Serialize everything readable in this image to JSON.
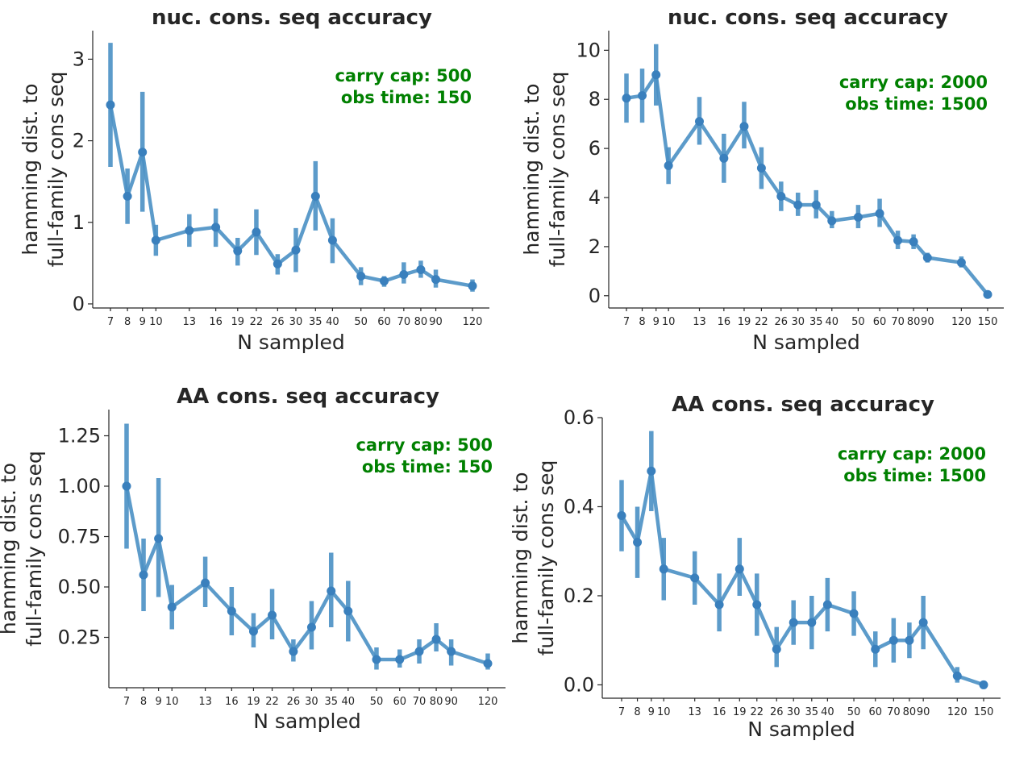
{
  "chart_data": [
    {
      "id": "p1",
      "type": "line",
      "position": "top-left",
      "title": "nuc. cons. seq accuracy",
      "xlabel": "N sampled",
      "ylabel_lines": [
        "hamming dist. to",
        "full-family cons seq"
      ],
      "annotation": [
        "carry cap: 500",
        "obs time:  150"
      ],
      "color": "#4a90c4",
      "ylim": [
        -0.05,
        3.35
      ],
      "yticks": [
        0,
        1,
        2,
        3
      ],
      "ytick_labels": [
        "0",
        "1",
        "2",
        "3"
      ],
      "categories": [
        "7",
        "8",
        "9",
        "10",
        "13",
        "16",
        "19",
        "22",
        "26",
        "30",
        "35",
        "40",
        "50",
        "60",
        "70",
        "80",
        "90",
        "120"
      ],
      "values": [
        2.44,
        1.32,
        1.86,
        0.78,
        0.9,
        0.94,
        0.65,
        0.88,
        0.49,
        0.66,
        1.32,
        0.78,
        0.34,
        0.28,
        0.36,
        0.42,
        0.3,
        0.22
      ],
      "err_low": [
        1.68,
        0.98,
        1.13,
        0.59,
        0.7,
        0.7,
        0.47,
        0.6,
        0.36,
        0.39,
        0.9,
        0.5,
        0.23,
        0.21,
        0.25,
        0.32,
        0.2,
        0.15
      ],
      "err_high": [
        3.2,
        1.66,
        2.6,
        0.97,
        1.1,
        1.17,
        0.81,
        1.16,
        0.61,
        0.93,
        1.75,
        1.05,
        0.45,
        0.34,
        0.51,
        0.53,
        0.42,
        0.3
      ]
    },
    {
      "id": "p2",
      "type": "line",
      "position": "top-right",
      "title": "nuc. cons. seq accuracy",
      "xlabel": "N sampled",
      "ylabel_lines": [
        "hamming dist. to",
        "full-family cons seq"
      ],
      "annotation": [
        "carry cap: 2000",
        "obs time:  1500"
      ],
      "color": "#4a90c4",
      "ylim": [
        -0.5,
        10.8
      ],
      "yticks": [
        0,
        2,
        4,
        6,
        8,
        10
      ],
      "ytick_labels": [
        "0",
        "2",
        "4",
        "6",
        "8",
        "10"
      ],
      "categories": [
        "7",
        "8",
        "9",
        "10",
        "13",
        "16",
        "19",
        "22",
        "26",
        "30",
        "35",
        "40",
        "50",
        "60",
        "70",
        "80",
        "90",
        "120",
        "150"
      ],
      "values": [
        8.05,
        8.15,
        9.0,
        5.3,
        7.1,
        5.6,
        6.9,
        5.2,
        4.05,
        3.7,
        3.7,
        3.05,
        3.2,
        3.35,
        2.25,
        2.2,
        1.55,
        1.35,
        0.05
      ],
      "err_low": [
        7.05,
        7.05,
        7.75,
        4.55,
        6.15,
        4.6,
        6.0,
        4.35,
        3.45,
        3.25,
        3.15,
        2.75,
        2.75,
        2.8,
        1.9,
        1.9,
        1.35,
        1.15,
        0.0
      ],
      "err_high": [
        9.05,
        9.25,
        10.25,
        6.05,
        8.1,
        6.6,
        7.9,
        6.05,
        4.65,
        4.2,
        4.3,
        3.45,
        3.7,
        3.95,
        2.65,
        2.5,
        1.75,
        1.6,
        0.1
      ]
    },
    {
      "id": "p3",
      "type": "line",
      "position": "bottom-left",
      "title": "AA cons. seq accuracy",
      "xlabel": "N sampled",
      "ylabel_lines": [
        "hamming dist. to",
        "full-family cons seq"
      ],
      "annotation": [
        "carry cap: 500",
        "obs time:  150"
      ],
      "color": "#4a90c4",
      "ylim": [
        0.0,
        1.38
      ],
      "yticks": [
        0.25,
        0.5,
        0.75,
        1.0,
        1.25
      ],
      "ytick_labels": [
        "0.25",
        "0.50",
        "0.75",
        "1.00",
        "1.25"
      ],
      "categories": [
        "7",
        "8",
        "9",
        "10",
        "13",
        "16",
        "19",
        "22",
        "26",
        "30",
        "35",
        "40",
        "50",
        "60",
        "70",
        "80",
        "90",
        "120"
      ],
      "values": [
        1.0,
        0.56,
        0.74,
        0.4,
        0.52,
        0.38,
        0.28,
        0.36,
        0.18,
        0.3,
        0.48,
        0.38,
        0.14,
        0.14,
        0.18,
        0.24,
        0.18,
        0.12
      ],
      "err_low": [
        0.69,
        0.38,
        0.45,
        0.29,
        0.4,
        0.26,
        0.2,
        0.24,
        0.13,
        0.19,
        0.3,
        0.23,
        0.09,
        0.1,
        0.12,
        0.18,
        0.11,
        0.09
      ],
      "err_high": [
        1.31,
        0.74,
        1.04,
        0.51,
        0.65,
        0.5,
        0.37,
        0.49,
        0.24,
        0.43,
        0.67,
        0.53,
        0.2,
        0.19,
        0.24,
        0.32,
        0.24,
        0.17
      ]
    },
    {
      "id": "p4",
      "type": "line",
      "position": "bottom-right",
      "title": "AA cons. seq accuracy",
      "xlabel": "N sampled",
      "ylabel_lines": [
        "hamming dist. to",
        "full-family cons seq"
      ],
      "annotation": [
        "carry cap: 2000",
        "obs time:  1500"
      ],
      "color": "#4a90c4",
      "ylim": [
        -0.03,
        0.6
      ],
      "yticks": [
        0.0,
        0.2,
        0.4,
        0.6
      ],
      "ytick_labels": [
        "0.0",
        "0.2",
        "0.4",
        "0.6"
      ],
      "categories": [
        "7",
        "8",
        "9",
        "10",
        "13",
        "16",
        "19",
        "22",
        "26",
        "30",
        "35",
        "40",
        "50",
        "60",
        "70",
        "80",
        "90",
        "120",
        "150"
      ],
      "values": [
        0.38,
        0.32,
        0.48,
        0.26,
        0.24,
        0.18,
        0.26,
        0.18,
        0.08,
        0.14,
        0.14,
        0.18,
        0.16,
        0.08,
        0.1,
        0.1,
        0.14,
        0.02,
        0.0
      ],
      "err_low": [
        0.3,
        0.24,
        0.39,
        0.19,
        0.18,
        0.12,
        0.2,
        0.11,
        0.04,
        0.09,
        0.08,
        0.12,
        0.11,
        0.04,
        0.05,
        0.06,
        0.08,
        0.005,
        0.0
      ],
      "err_high": [
        0.46,
        0.4,
        0.57,
        0.33,
        0.3,
        0.25,
        0.33,
        0.25,
        0.13,
        0.19,
        0.2,
        0.24,
        0.21,
        0.12,
        0.15,
        0.14,
        0.2,
        0.04,
        0.005
      ]
    }
  ]
}
